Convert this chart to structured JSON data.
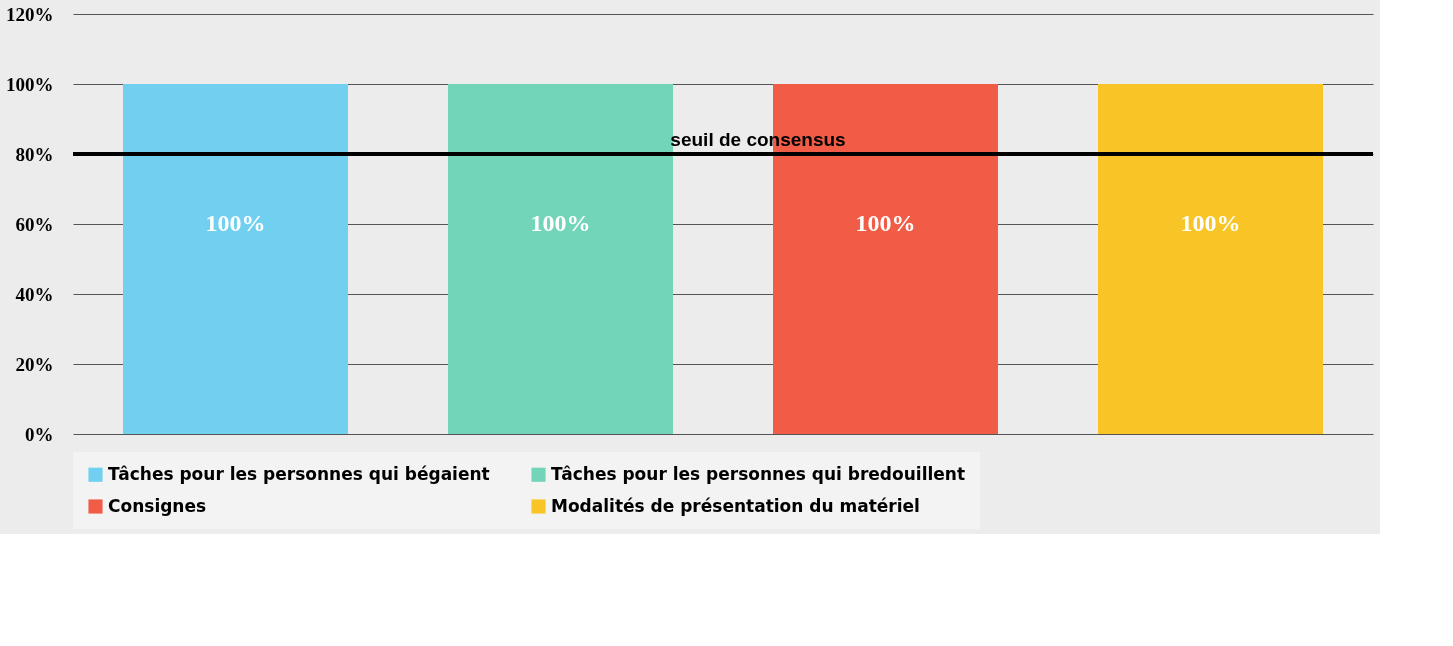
{
  "chart_data": {
    "type": "bar",
    "categories": [
      null
    ],
    "series": [
      {
        "name": "Tâches pour les personnes qui bégaient",
        "color": "#71cff0",
        "values": [
          100
        ],
        "value_labels": [
          "100%"
        ]
      },
      {
        "name": "Tâches pour les personnes qui bredouillent",
        "color": "#72d4b9",
        "values": [
          100
        ],
        "value_labels": [
          "100%"
        ]
      },
      {
        "name": "Consignes",
        "color": "#f05c45",
        "values": [
          100
        ],
        "value_labels": [
          "100%"
        ]
      },
      {
        "name": "Modalités de présentation du matériel",
        "color": "#f9c425",
        "values": [
          100
        ],
        "value_labels": [
          "100%"
        ]
      }
    ],
    "ylim": [
      0,
      120
    ],
    "yticks": [
      {
        "value": 0,
        "label": "0%"
      },
      {
        "value": 20,
        "label": "20%"
      },
      {
        "value": 40,
        "label": "40%"
      },
      {
        "value": 60,
        "label": "60%"
      },
      {
        "value": 80,
        "label": "80%"
      },
      {
        "value": 100,
        "label": "100%"
      },
      {
        "value": 120,
        "label": "120%"
      }
    ],
    "ref_lines": [
      {
        "axis": "y",
        "value": 80,
        "label": "seuil de consensus",
        "color": "#000000",
        "line_style": "solid"
      }
    ],
    "grid": "y",
    "legend": "bottom",
    "tick_labels": "y"
  }
}
